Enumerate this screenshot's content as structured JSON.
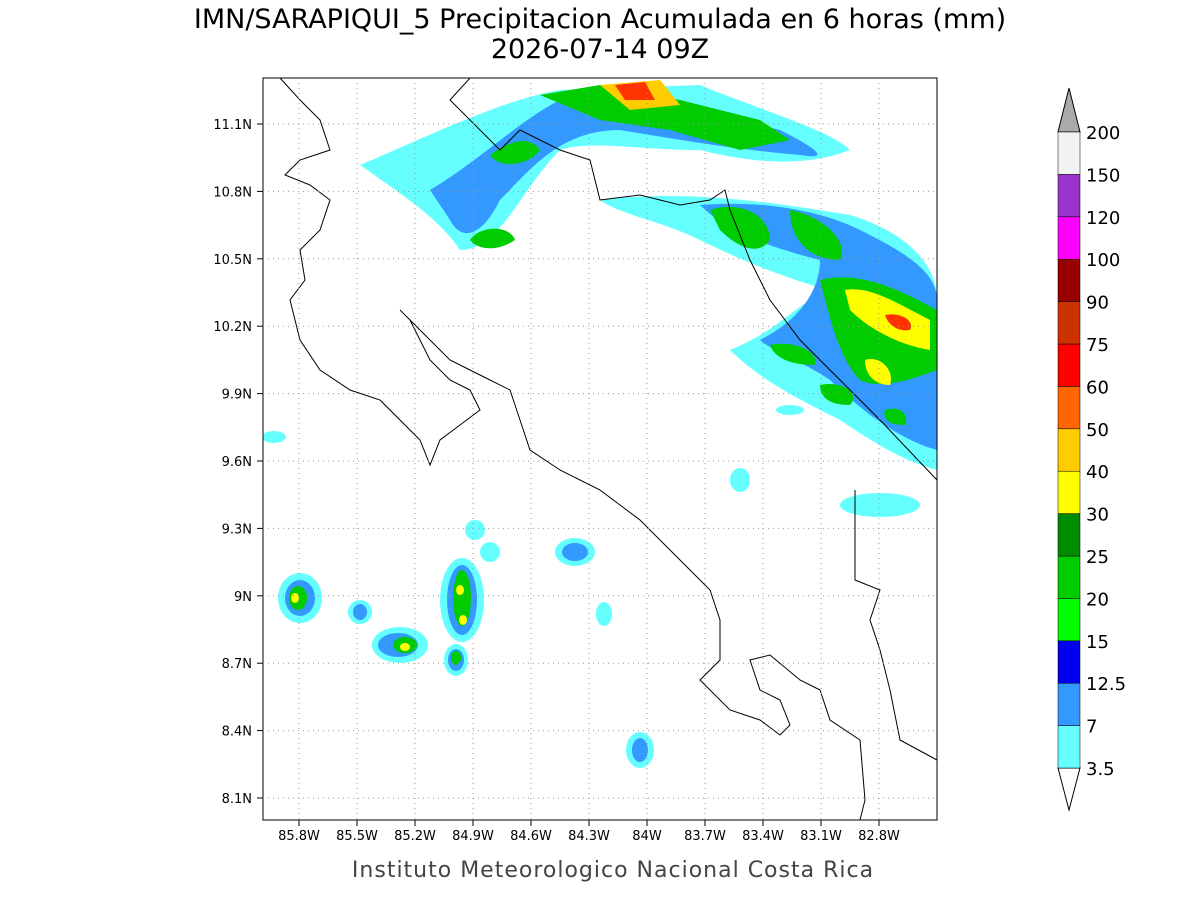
{
  "title": "IMN/SARAPIQUI_5 Precipitacion Acumulada en 6 horas (mm)",
  "subtitle": "2026-07-14 09Z",
  "footer": "Instituto Meteorologico Nacional Costa Rica",
  "map": {
    "lat_ticks": [
      "11.1N",
      "10.8N",
      "10.5N",
      "10.2N",
      "9.9N",
      "9.6N",
      "9.3N",
      "9N",
      "8.7N",
      "8.4N",
      "8.1N"
    ],
    "lon_ticks": [
      "85.8W",
      "85.5W",
      "85.2W",
      "84.9W",
      "84.6W",
      "84.3W",
      "84W",
      "83.7W",
      "83.4W",
      "83.1W",
      "82.8W"
    ]
  },
  "colorbar": {
    "labels": [
      "3.5",
      "7",
      "12.5",
      "15",
      "20",
      "25",
      "30",
      "40",
      "50",
      "60",
      "75",
      "90",
      "100",
      "120",
      "150",
      "200"
    ],
    "colors": [
      "#66ffff",
      "#3399ff",
      "#0000ee",
      "#00ff00",
      "#00cc00",
      "#008c00",
      "#ffff00",
      "#ffcc00",
      "#ff6600",
      "#ff0000",
      "#cc3300",
      "#990000",
      "#ff00ff",
      "#9933cc",
      "#f2f2f2"
    ]
  }
}
